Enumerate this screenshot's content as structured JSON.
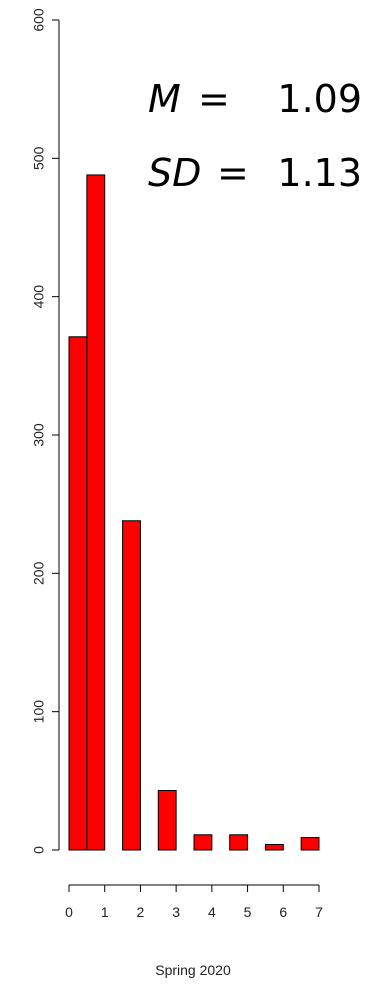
{
  "chart_data": {
    "type": "bar",
    "xlabel": "Spring 2020",
    "ylabel": "",
    "ylim": [
      0,
      600
    ],
    "y_ticks": [
      0,
      100,
      200,
      300,
      400,
      500,
      600
    ],
    "x_ticks": [
      0,
      1,
      2,
      3,
      4,
      5,
      6,
      7
    ],
    "xlim": [
      0,
      7
    ],
    "bars": [
      {
        "x0": 0,
        "x1": 0.5,
        "value": 371
      },
      {
        "x0": 0.5,
        "x1": 1,
        "value": 488
      },
      {
        "x0": 1.5,
        "x1": 2,
        "value": 238
      },
      {
        "x0": 2.5,
        "x1": 3,
        "value": 43
      },
      {
        "x0": 3.5,
        "x1": 4,
        "value": 11
      },
      {
        "x0": 4.5,
        "x1": 5,
        "value": 11
      },
      {
        "x0": 5.5,
        "x1": 6,
        "value": 4
      },
      {
        "x0": 6.5,
        "x1": 7,
        "value": 9
      }
    ],
    "bar_color": "#ff0000",
    "grid": false,
    "annotations": {
      "mean": {
        "label": "M",
        "equals": "=",
        "value": "1.09"
      },
      "sd": {
        "label": "SD",
        "equals": "=",
        "value": "1.13"
      }
    }
  }
}
